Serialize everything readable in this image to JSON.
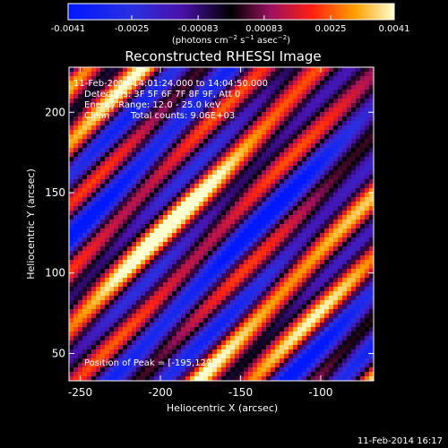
{
  "chart_data": {
    "type": "heatmap",
    "title": "Reconstructed RHESSI Image",
    "xlabel": "Heliocentric X (arcsec)",
    "ylabel": "Heliocentric Y (arcsec)",
    "xlim": [
      -257,
      -67
    ],
    "ylim": [
      33,
      228
    ],
    "x_ticks": [
      -250,
      -200,
      -150,
      -100
    ],
    "y_ticks": [
      50,
      100,
      150,
      200
    ],
    "colorbar": {
      "label_prefix": "(photons cm",
      "label_exp1": "−2",
      "label_mid": " s",
      "label_exp2": "−1",
      "label_mid2": " asec",
      "label_exp3": "−2",
      "label_suffix": ")",
      "range": [
        -0.0041,
        0.0041
      ],
      "ticks": [
        -0.0041,
        -0.0025,
        -0.00083,
        0.00083,
        0.0025,
        0.0041
      ],
      "tick_labels": [
        "-0.0041",
        "-0.0025",
        "-0.00083",
        "0.00083",
        "0.0025",
        "0.0041"
      ]
    },
    "annotations": {
      "time_range": "11-Feb-2014 14:01:24.000 to 14:04:50.000",
      "detectors": "Detectors: 3F 5F 6F 7F 8F 9F, Att 0",
      "energy_range": "Energy Range: 12.0 - 25.0 keV",
      "algorithm": "Clean",
      "total_counts": "Total counts: 9.06E+03",
      "peak": "Position of Peak = [-195,129]"
    },
    "peak_position": [
      -195,
      129
    ],
    "grid": false
  },
  "footer": {
    "timestamp": "11-Feb-2014 16:17"
  }
}
